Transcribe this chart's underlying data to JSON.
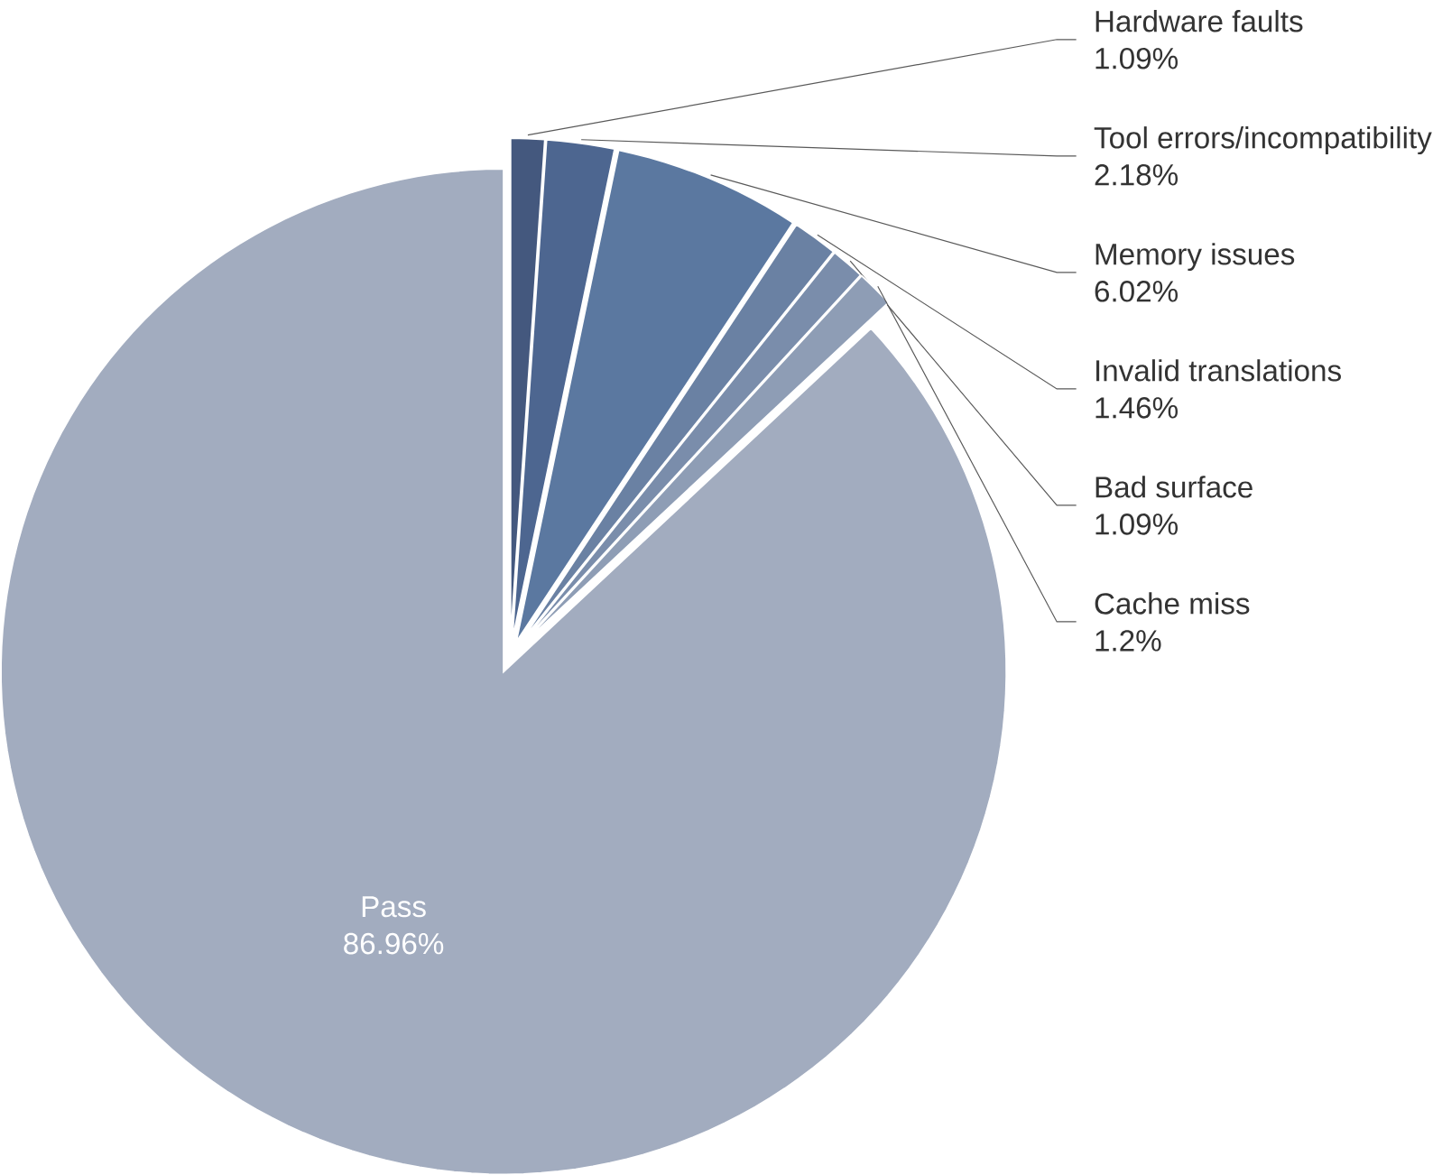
{
  "chart_data": {
    "type": "pie",
    "categories": [
      "Hardware faults",
      "Tool errors/incompatibility",
      "Memory issues",
      "Invalid translations",
      "Bad surface",
      "Cache miss",
      "Pass"
    ],
    "values": [
      1.09,
      2.18,
      6.02,
      1.46,
      1.09,
      1.2,
      86.96
    ],
    "value_labels": [
      "1.09%",
      "2.18%",
      "6.02%",
      "1.46%",
      "1.09%",
      "1.2%",
      "86.96%"
    ],
    "colors": [
      "#44587e",
      "#4d6690",
      "#5b78a0",
      "#6a81a3",
      "#7a8dab",
      "#8e9db5",
      "#a2acbf"
    ]
  }
}
